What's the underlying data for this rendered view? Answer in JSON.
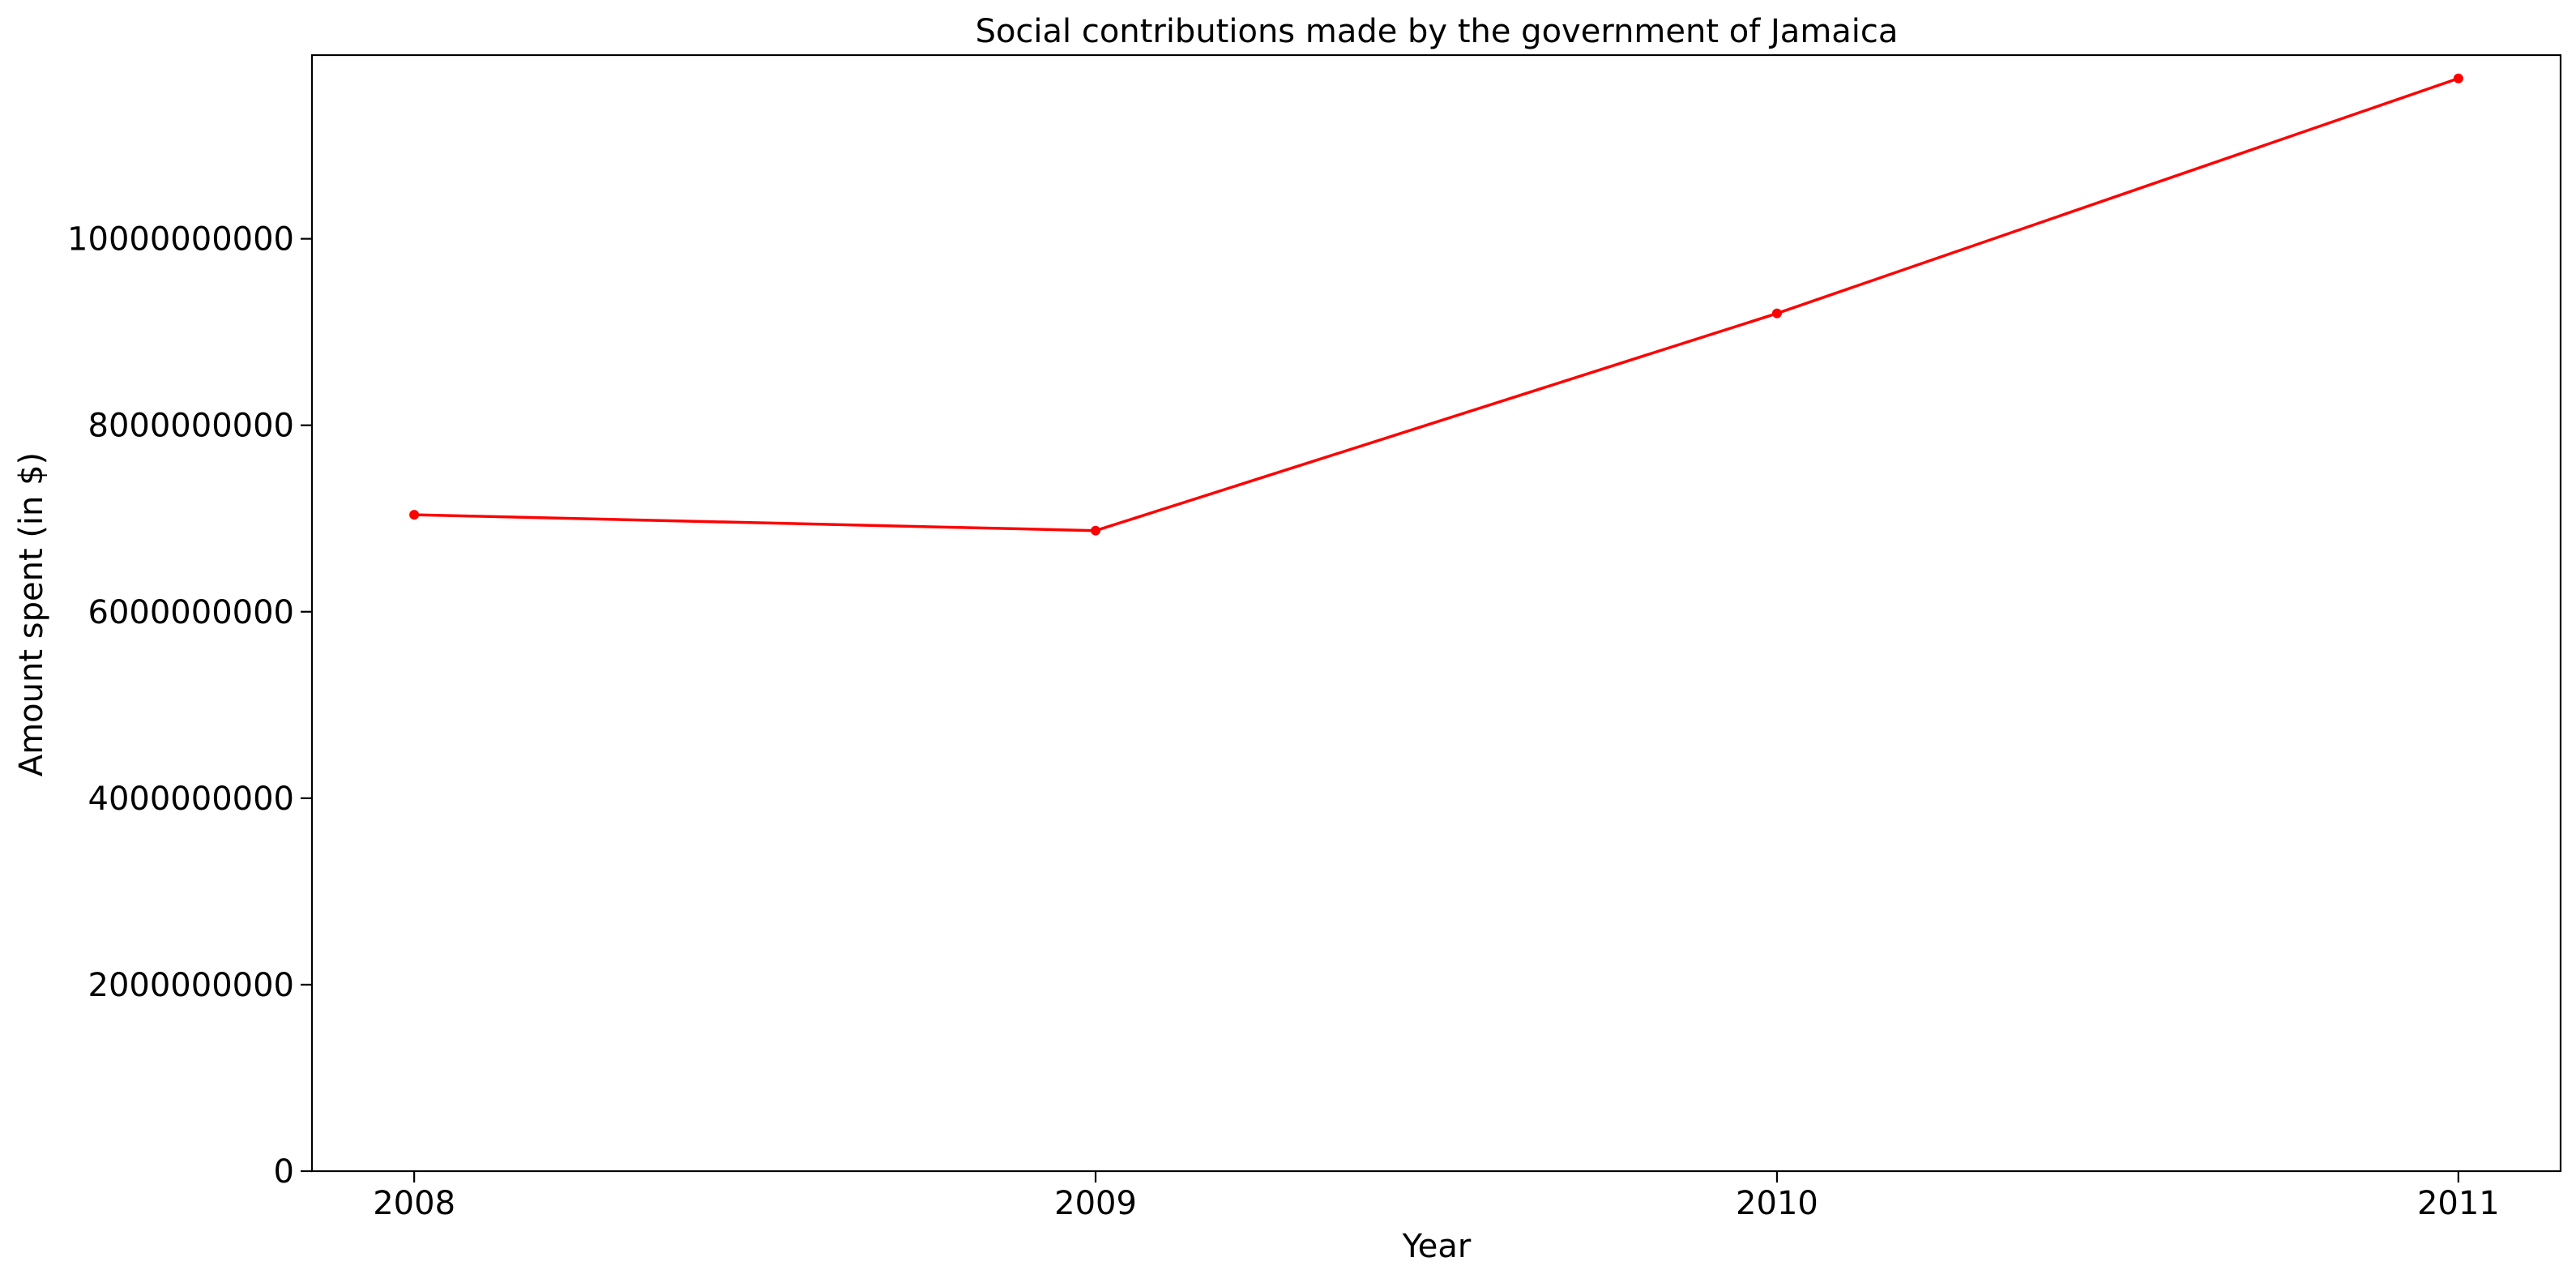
{
  "chart_data": {
    "type": "line",
    "title": "Social contributions made by the government of Jamaica",
    "xlabel": "Year",
    "ylabel": "Amount spent (in $)",
    "x": [
      "2008",
      "2009",
      "2010",
      "2011"
    ],
    "series": [
      {
        "values": [
          7040000000,
          6870000000,
          9200000000,
          11720000000
        ],
        "color": "#ff0000",
        "marker": "dot"
      }
    ],
    "xlim": [
      2007.85,
      2011.15
    ],
    "ylim": [
      0,
      11970000000
    ],
    "y_ticks": [
      "0",
      "2000000000",
      "4000000000",
      "6000000000",
      "8000000000",
      "10000000000"
    ],
    "y_tick_values": [
      0,
      2000000000,
      4000000000,
      6000000000,
      8000000000,
      10000000000
    ],
    "grid": false,
    "legend": "none"
  }
}
